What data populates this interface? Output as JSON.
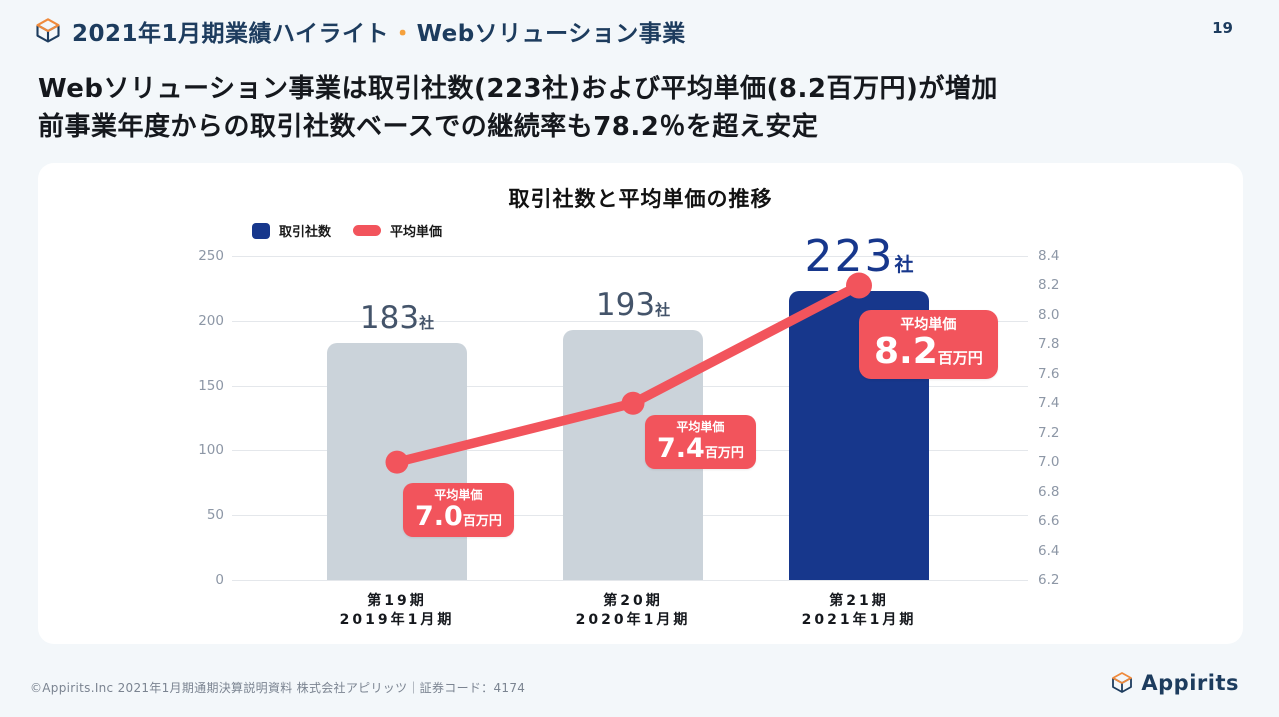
{
  "page": {
    "number": "19"
  },
  "header": {
    "title_part1": "2021年1月期業績ハイライト",
    "separator": "・",
    "title_part2": "Webソリューション事業"
  },
  "headline": {
    "line1": "Webソリューション事業は取引社数(223社)および平均単価(8.2百万円)が増加",
    "line2": "前事業年度からの取引社数ベースでの継続率も78.2％を超え安定"
  },
  "chart_data": {
    "type": "bar",
    "overlay": "line",
    "title": "取引社数と平均単価の推移",
    "categories": [
      {
        "line1": "第19期",
        "line2": "2019年1月期"
      },
      {
        "line1": "第20期",
        "line2": "2020年1月期"
      },
      {
        "line1": "第21期",
        "line2": "2021年1月期"
      }
    ],
    "series": [
      {
        "name": "取引社数",
        "type": "bar",
        "axis": "left",
        "unit": "社",
        "values": [
          183,
          193,
          223
        ],
        "value_labels": [
          "183",
          "193",
          "223"
        ],
        "bar_colors": [
          "#cbd3da",
          "#cbd3da",
          "#17378c"
        ]
      },
      {
        "name": "平均単価",
        "type": "line",
        "axis": "right",
        "unit": "百万円",
        "values": [
          7.0,
          7.4,
          8.2
        ],
        "value_labels": [
          "7.0",
          "7.4",
          "8.2"
        ],
        "color": "#f2545c",
        "callout_title": "平均単価"
      }
    ],
    "left_axis": {
      "range": [
        0,
        250
      ],
      "ticks": [
        250,
        200,
        150,
        100,
        50,
        0
      ]
    },
    "right_axis": {
      "range": [
        6.2,
        8.4
      ],
      "ticks": [
        8.4,
        8.2,
        8.0,
        7.8,
        7.6,
        7.4,
        7.2,
        7.0,
        6.8,
        6.6,
        6.4,
        6.2
      ]
    },
    "legend": {
      "position": "top-left",
      "entries": [
        "取引社数",
        "平均単価"
      ]
    },
    "grid": true
  },
  "colors": {
    "background": "#f3f7fa",
    "card": "#ffffff",
    "navy_text": "#1d3c5e",
    "accent_orange": "#f5a13c",
    "bar_gray": "#cbd3da",
    "bar_blue": "#17378c",
    "line_red": "#f2545c",
    "axis_text": "#8d97a6",
    "grid_line": "#e4e7eb",
    "bar_label_gray": "#44546a",
    "footer_text": "#7b8491"
  },
  "footer": {
    "credit": "©Appirits.Inc  2021年1月期通期決算説明資料  株式会社アピリッツ｜証券コード：4174",
    "logo_text": "Appirits"
  }
}
